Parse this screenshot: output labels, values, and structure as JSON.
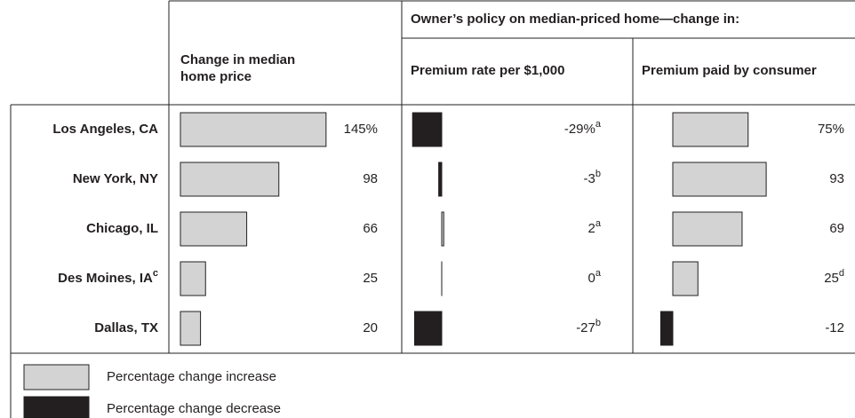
{
  "group_header": "Owner’s policy on median-priced home—change in:",
  "rows": [
    "Los Angeles, CA",
    "New York, NY",
    "Chicago, IL",
    "Des Moines, IA",
    "Dallas, TX"
  ],
  "row_notes": [
    null,
    null,
    null,
    "c",
    null
  ],
  "legend": [
    {
      "label": "Percentage change increase",
      "color": "#d3d3d3"
    },
    {
      "label": "Percentage change decrease",
      "color": "#231f20"
    }
  ],
  "chart_data": [
    {
      "type": "bar",
      "orientation": "horizontal",
      "title": "Change in median home price",
      "values": [
        145,
        98,
        66,
        25,
        20
      ],
      "value_labels": [
        "145%",
        "98",
        "66",
        "25",
        "20"
      ]
    },
    {
      "type": "bar",
      "orientation": "horizontal",
      "title": "Premium rate per $1,000",
      "values": [
        -29,
        -3,
        2,
        0,
        -27
      ],
      "value_labels": [
        "-29%",
        "-3",
        "2",
        "0",
        "-27"
      ],
      "value_notes": [
        "a",
        "b",
        "a",
        "a",
        "b"
      ]
    },
    {
      "type": "bar",
      "orientation": "horizontal",
      "title": "Premium paid by consumer",
      "values": [
        75,
        93,
        69,
        25,
        -12
      ],
      "value_labels": [
        "75%",
        "93",
        "69",
        "25",
        "-12"
      ],
      "value_notes": [
        null,
        null,
        null,
        "d",
        null
      ]
    }
  ]
}
